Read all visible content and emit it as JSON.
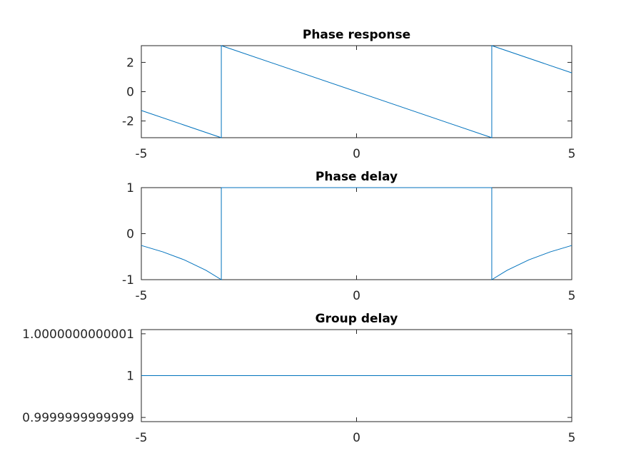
{
  "chart_data": [
    {
      "type": "line",
      "title": "Phase response",
      "xlabel": "",
      "ylabel": "",
      "xlim": [
        -5,
        5
      ],
      "ylim": [
        -3.14159,
        3.14159
      ],
      "xticks": [
        "-5",
        "0",
        "5"
      ],
      "yticks": [
        "-2",
        "0",
        "2"
      ],
      "ytick_values": [
        -2,
        0,
        2
      ],
      "grid": false,
      "series": [
        {
          "color": "#0072bd",
          "x": [
            -5,
            -3.1416,
            -3.1416,
            3.1416,
            3.1416,
            5
          ],
          "y": [
            -1.2832,
            -3.1416,
            3.1416,
            -3.1416,
            3.1416,
            1.2832
          ]
        }
      ]
    },
    {
      "type": "line",
      "title": "Phase delay",
      "xlabel": "",
      "ylabel": "",
      "xlim": [
        -5,
        5
      ],
      "ylim": [
        -1,
        1
      ],
      "xticks": [
        "-5",
        "0",
        "5"
      ],
      "yticks": [
        "-1",
        "0",
        "1"
      ],
      "ytick_values": [
        -1,
        0,
        1
      ],
      "grid": false,
      "series": [
        {
          "color": "#0072bd",
          "x": [
            -5,
            -4.5,
            -4.0,
            -3.5,
            -3.1416,
            -3.1416,
            3.1416,
            3.1416,
            3.5,
            4.0,
            4.5,
            5
          ],
          "y": [
            -0.2566,
            -0.3963,
            -0.5708,
            -0.7952,
            -1.0,
            1.0,
            1.0,
            -1.0,
            -0.7952,
            -0.5708,
            -0.3963,
            -0.2566
          ]
        }
      ]
    },
    {
      "type": "line",
      "title": "Group delay",
      "xlabel": "",
      "ylabel": "",
      "xlim": [
        -5,
        5
      ],
      "ylim": [
        0.99999999999989,
        1.00000000000011
      ],
      "xticks": [
        "-5",
        "0",
        "5"
      ],
      "yticks": [
        "0.9999999999999",
        "1",
        "1.0000000000001"
      ],
      "ytick_values": [
        0.9999999999999,
        1,
        1.0000000000001
      ],
      "grid": false,
      "series": [
        {
          "color": "#0072bd",
          "x": [
            -5,
            5
          ],
          "y": [
            1,
            1
          ]
        }
      ]
    }
  ]
}
